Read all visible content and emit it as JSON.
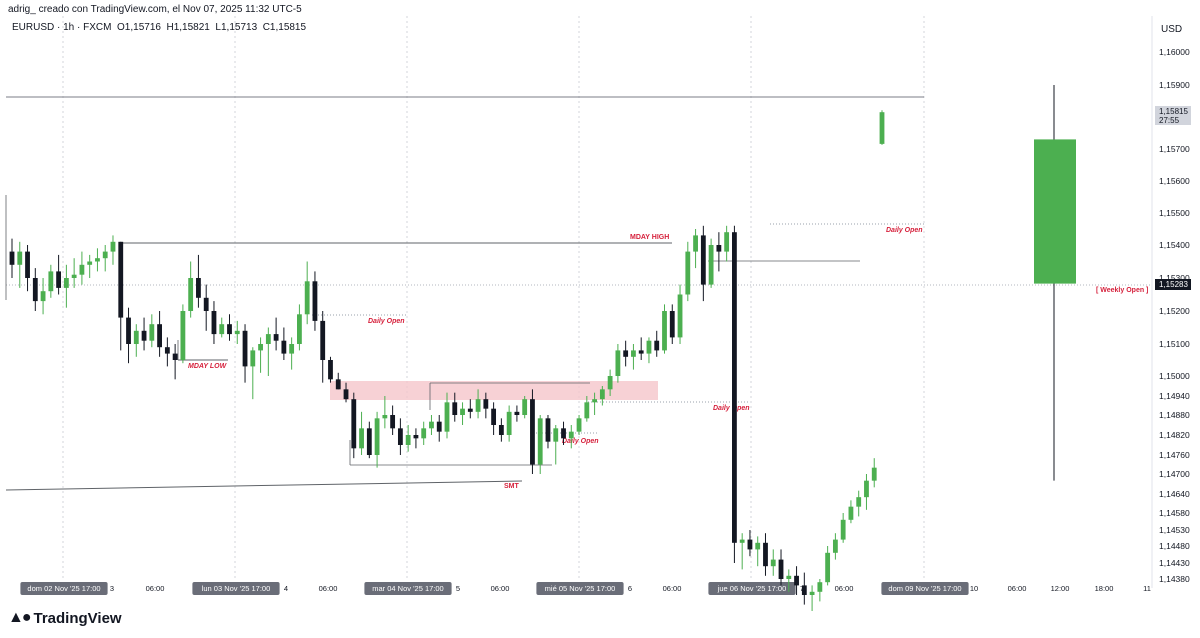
{
  "header": {
    "caption": "adrig_ creado con TradingView.com, el Nov 07, 2025 11:32 UTC-5",
    "symbol": "EURUSD · 1h · FXCM",
    "ohlc": "O1,15716  H1,15821  L1,15713  C1,15815",
    "currency": "USD"
  },
  "footer": {
    "brand": "TradingView"
  },
  "price_labels": {
    "current_price": "1,15815",
    "countdown": "27:55",
    "weekly_open_price": "1,15283"
  },
  "annotations": {
    "mday_high": "MDAY HIGH",
    "mday_low": "MDAY LOW",
    "daily_open": "Daily Open",
    "smt": "SMT",
    "weekly_open": "[ Weekly Open ]"
  },
  "colors": {
    "up": "#4caf50",
    "down": "#131722",
    "annotation": "#d6213c",
    "zone": "#f5c6cb"
  },
  "chart_data": {
    "type": "candlestick",
    "title": "",
    "y_ticks": [
      "1,16000",
      "1,15900",
      "1,15700",
      "1,15600",
      "1,15500",
      "1,15400",
      "1,15300",
      "1,15200",
      "1,15100",
      "1,15000",
      "1,14940",
      "1,14880",
      "1,14820",
      "1,14760",
      "1,14700",
      "1,14640",
      "1,14580",
      "1,14530",
      "1,14480",
      "1,14430",
      "1,14380"
    ],
    "x_ticks": [
      {
        "label": "dom 02 Nov '25   17:00",
        "highlight": true
      },
      {
        "label": "3"
      },
      {
        "label": "06:00"
      },
      {
        "label": "lun 03 Nov '25   17:00",
        "highlight": true
      },
      {
        "label": "4"
      },
      {
        "label": "06:00"
      },
      {
        "label": "mar 04 Nov '25   17:00",
        "highlight": true
      },
      {
        "label": "5"
      },
      {
        "label": "06:00"
      },
      {
        "label": "mié 05 Nov '25   17:00",
        "highlight": true
      },
      {
        "label": "6"
      },
      {
        "label": "06:00"
      },
      {
        "label": "jue 06 Nov '25   17:00",
        "highlight": true
      },
      {
        "label": "7"
      },
      {
        "label": "06:00"
      },
      {
        "label": "dom 09 Nov '25   17:00",
        "highlight": true
      },
      {
        "label": "10"
      },
      {
        "label": "06:00"
      },
      {
        "label": "12:00"
      },
      {
        "label": "18:00"
      },
      {
        "label": "11"
      }
    ],
    "ohlc_1h": [
      [
        1.1538,
        1.1542,
        1.153,
        1.1534
      ],
      [
        1.1534,
        1.1541,
        1.1527,
        1.1538
      ],
      [
        1.1538,
        1.154,
        1.1526,
        1.153
      ],
      [
        1.153,
        1.1533,
        1.152,
        1.1523
      ],
      [
        1.1523,
        1.153,
        1.1519,
        1.1526
      ],
      [
        1.1526,
        1.1534,
        1.1524,
        1.1532
      ],
      [
        1.1532,
        1.1537,
        1.1525,
        1.1527
      ],
      [
        1.1527,
        1.1534,
        1.1521,
        1.153
      ],
      [
        1.153,
        1.1536,
        1.1527,
        1.1531
      ],
      [
        1.1531,
        1.1538,
        1.1528,
        1.1534
      ],
      [
        1.1534,
        1.1537,
        1.153,
        1.1535
      ],
      [
        1.1535,
        1.1539,
        1.1532,
        1.1536
      ],
      [
        1.1536,
        1.154,
        1.1532,
        1.1538
      ],
      [
        1.1538,
        1.1543,
        1.1534,
        1.1541
      ],
      [
        1.1541,
        1.1541,
        1.1508,
        1.1518
      ],
      [
        1.1518,
        1.1521,
        1.1504,
        1.151
      ],
      [
        1.151,
        1.1516,
        1.1506,
        1.1514
      ],
      [
        1.1514,
        1.1518,
        1.1508,
        1.1511
      ],
      [
        1.1511,
        1.1519,
        1.1509,
        1.1516
      ],
      [
        1.1516,
        1.152,
        1.1506,
        1.1509
      ],
      [
        1.1509,
        1.1512,
        1.1503,
        1.1507
      ],
      [
        1.1507,
        1.151,
        1.1499,
        1.1505
      ],
      [
        1.1505,
        1.1522,
        1.1504,
        1.152
      ],
      [
        1.152,
        1.1535,
        1.1518,
        1.153
      ],
      [
        1.153,
        1.1537,
        1.1521,
        1.1524
      ],
      [
        1.1524,
        1.1528,
        1.1514,
        1.152
      ],
      [
        1.152,
        1.1523,
        1.151,
        1.1513
      ],
      [
        1.1513,
        1.1518,
        1.1512,
        1.1516
      ],
      [
        1.1516,
        1.1519,
        1.1511,
        1.1513
      ],
      [
        1.1513,
        1.1517,
        1.151,
        1.1514
      ],
      [
        1.1514,
        1.1516,
        1.1498,
        1.1503
      ],
      [
        1.1503,
        1.1509,
        1.1493,
        1.1508
      ],
      [
        1.1508,
        1.1512,
        1.1501,
        1.151
      ],
      [
        1.151,
        1.1515,
        1.15,
        1.1513
      ],
      [
        1.1513,
        1.1518,
        1.1508,
        1.1511
      ],
      [
        1.1511,
        1.1515,
        1.1505,
        1.1507
      ],
      [
        1.1507,
        1.1512,
        1.1502,
        1.151
      ],
      [
        1.151,
        1.1522,
        1.1508,
        1.1519
      ],
      [
        1.1519,
        1.1535,
        1.1516,
        1.1529
      ],
      [
        1.1529,
        1.1532,
        1.1514,
        1.1517
      ],
      [
        1.1517,
        1.152,
        1.1498,
        1.1505
      ],
      [
        1.1505,
        1.1506,
        1.1498,
        1.1499
      ],
      [
        1.1499,
        1.1501,
        1.1496,
        1.1496
      ],
      [
        1.1496,
        1.1498,
        1.1492,
        1.1493
      ],
      [
        1.1493,
        1.1495,
        1.1475,
        1.1478
      ],
      [
        1.1478,
        1.1489,
        1.1476,
        1.1484
      ],
      [
        1.1484,
        1.1486,
        1.1475,
        1.1476
      ],
      [
        1.1476,
        1.1489,
        1.1472,
        1.1487
      ],
      [
        1.1487,
        1.1494,
        1.1484,
        1.1488
      ],
      [
        1.1488,
        1.1491,
        1.1482,
        1.1484
      ],
      [
        1.1484,
        1.1487,
        1.1476,
        1.1479
      ],
      [
        1.1479,
        1.1485,
        1.1477,
        1.1482
      ],
      [
        1.1482,
        1.1484,
        1.1478,
        1.1481
      ],
      [
        1.1481,
        1.1486,
        1.1479,
        1.1484
      ],
      [
        1.1484,
        1.1488,
        1.1482,
        1.1486
      ],
      [
        1.1486,
        1.1488,
        1.148,
        1.1483
      ],
      [
        1.1483,
        1.1495,
        1.1481,
        1.1492
      ],
      [
        1.1492,
        1.1495,
        1.1486,
        1.1488
      ],
      [
        1.1488,
        1.1492,
        1.1485,
        1.149
      ],
      [
        1.149,
        1.1493,
        1.1487,
        1.1489
      ],
      [
        1.1489,
        1.1496,
        1.1487,
        1.1493
      ],
      [
        1.1493,
        1.1495,
        1.1487,
        1.149
      ],
      [
        1.149,
        1.1492,
        1.1482,
        1.1485
      ],
      [
        1.1485,
        1.1487,
        1.148,
        1.1482
      ],
      [
        1.1482,
        1.1491,
        1.148,
        1.1489
      ],
      [
        1.1489,
        1.1491,
        1.1486,
        1.1488
      ],
      [
        1.1488,
        1.1494,
        1.1487,
        1.1493
      ],
      [
        1.1493,
        1.1496,
        1.147,
        1.1473
      ],
      [
        1.1473,
        1.1488,
        1.147,
        1.1487
      ],
      [
        1.1487,
        1.1488,
        1.1478,
        1.148
      ],
      [
        1.148,
        1.1485,
        1.1473,
        1.1484
      ],
      [
        1.1484,
        1.1486,
        1.1479,
        1.1481
      ],
      [
        1.1481,
        1.1485,
        1.1478,
        1.1483
      ],
      [
        1.1483,
        1.1488,
        1.1482,
        1.1487
      ],
      [
        1.1487,
        1.1494,
        1.1486,
        1.1492
      ],
      [
        1.1492,
        1.1495,
        1.1488,
        1.1493
      ],
      [
        1.1493,
        1.1497,
        1.1491,
        1.1496
      ],
      [
        1.1496,
        1.1502,
        1.1494,
        1.15
      ],
      [
        1.15,
        1.151,
        1.1498,
        1.1508
      ],
      [
        1.1508,
        1.1511,
        1.1503,
        1.1506
      ],
      [
        1.1506,
        1.151,
        1.1502,
        1.1508
      ],
      [
        1.1508,
        1.1512,
        1.1505,
        1.1507
      ],
      [
        1.1507,
        1.1512,
        1.1504,
        1.1511
      ],
      [
        1.1511,
        1.1514,
        1.1506,
        1.1508
      ],
      [
        1.1508,
        1.1522,
        1.1507,
        1.152
      ],
      [
        1.152,
        1.1522,
        1.151,
        1.1512
      ],
      [
        1.1512,
        1.1528,
        1.151,
        1.1525
      ],
      [
        1.1525,
        1.1541,
        1.1523,
        1.1538
      ],
      [
        1.1538,
        1.1545,
        1.1533,
        1.1543
      ],
      [
        1.1543,
        1.1546,
        1.1523,
        1.1528
      ],
      [
        1.1528,
        1.1542,
        1.1527,
        1.154
      ],
      [
        1.154,
        1.1544,
        1.1532,
        1.1538
      ],
      [
        1.1538,
        1.1546,
        1.1535,
        1.1544
      ],
      [
        1.1544,
        1.145,
        1.1443,
        1.1449
      ],
      [
        1.1449,
        1.1452,
        1.1441,
        1.145
      ],
      [
        1.145,
        1.1453,
        1.1445,
        1.1447
      ],
      [
        1.1447,
        1.1451,
        1.1442,
        1.1449
      ],
      [
        1.1449,
        1.1452,
        1.1439,
        1.1442
      ],
      [
        1.1442,
        1.1447,
        1.1439,
        1.1444
      ],
      [
        1.1444,
        1.1447,
        1.1436,
        1.1438
      ],
      [
        1.1438,
        1.1441,
        1.1434,
        1.1439
      ],
      [
        1.1439,
        1.1442,
        1.1433,
        1.1436
      ],
      [
        1.1436,
        1.144,
        1.143,
        1.1433
      ],
      [
        1.1433,
        1.1436,
        1.1428,
        1.1434
      ],
      [
        1.1434,
        1.1438,
        1.1431,
        1.1437
      ],
      [
        1.1437,
        1.1448,
        1.1436,
        1.1446
      ],
      [
        1.1446,
        1.1452,
        1.1444,
        1.145
      ],
      [
        1.145,
        1.1458,
        1.1449,
        1.1456
      ],
      [
        1.1456,
        1.1462,
        1.1455,
        1.146
      ],
      [
        1.146,
        1.1465,
        1.1457,
        1.1463
      ],
      [
        1.1463,
        1.147,
        1.1459,
        1.1468
      ],
      [
        1.1468,
        1.1475,
        1.1466,
        1.1472
      ],
      [
        1.15716,
        1.15821,
        1.15713,
        1.15815
      ]
    ],
    "weekly_candle_next_week": [
      1.1573,
      1.159,
      1.1468,
      1.15283
    ]
  }
}
